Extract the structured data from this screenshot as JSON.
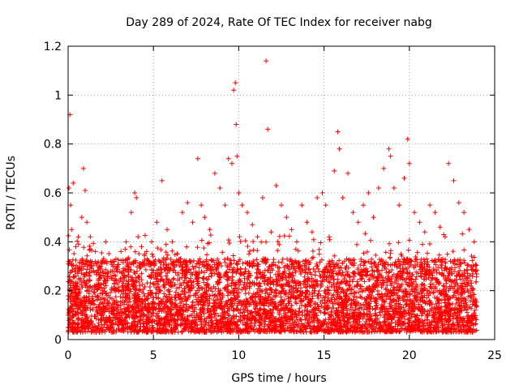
{
  "chart_data": {
    "type": "scatter",
    "title": "Day 289 of 2024, Rate Of TEC Index for receiver nabg",
    "xlabel": "GPS time / hours",
    "ylabel": "ROTI / TECUs",
    "xlim": [
      0,
      25
    ],
    "ylim": [
      0,
      1.2
    ],
    "xticks": [
      "0",
      "5",
      "10",
      "15",
      "20",
      "25"
    ],
    "yticks": [
      "0",
      "0.2",
      "0.4",
      "0.6",
      "0.8",
      "1",
      "1.2"
    ],
    "grid": true,
    "marker": "plus",
    "color": "#ff0000",
    "series": [
      {
        "x": [
          0.05,
          0.1,
          0.15,
          0.2,
          0.3,
          0.45,
          0.6,
          0.8,
          0.9,
          1.0,
          1.1,
          1.3,
          1.6,
          1.9,
          2.2,
          2.5,
          2.8,
          3.1,
          3.4,
          3.7,
          3.9,
          4.0,
          4.1,
          4.3,
          4.6,
          4.9,
          5.2,
          5.5,
          5.8,
          6.1,
          6.4,
          6.7,
          7.0,
          7.3,
          7.6,
          7.8,
          8.0,
          8.3,
          8.6,
          8.9,
          9.2,
          9.4,
          9.6,
          9.7,
          9.8,
          9.85,
          9.9,
          10.0,
          10.2,
          10.5,
          10.8,
          11.1,
          11.4,
          11.6,
          11.7,
          11.9,
          12.2,
          12.5,
          12.8,
          13.1,
          13.4,
          13.7,
          14.0,
          14.3,
          14.6,
          14.9,
          15.1,
          15.3,
          15.6,
          15.8,
          15.9,
          16.1,
          16.4,
          16.7,
          17.0,
          17.3,
          17.6,
          17.9,
          18.2,
          18.5,
          18.8,
          18.9,
          19.1,
          19.4,
          19.7,
          19.9,
          20.0,
          20.3,
          20.6,
          20.9,
          21.2,
          21.5,
          21.8,
          22.1,
          22.3,
          22.6,
          22.9,
          23.2,
          23.5,
          23.8
        ],
        "y": [
          0.62,
          0.92,
          0.55,
          0.45,
          0.64,
          0.38,
          0.42,
          0.5,
          0.7,
          0.61,
          0.48,
          0.42,
          0.36,
          0.3,
          0.4,
          0.28,
          0.33,
          0.36,
          0.4,
          0.52,
          0.6,
          0.58,
          0.42,
          0.38,
          0.36,
          0.4,
          0.48,
          0.65,
          0.45,
          0.4,
          0.35,
          0.52,
          0.56,
          0.48,
          0.74,
          0.55,
          0.5,
          0.45,
          0.68,
          0.62,
          0.55,
          0.74,
          0.72,
          1.02,
          1.05,
          0.88,
          0.75,
          0.6,
          0.55,
          0.52,
          0.47,
          0.42,
          0.58,
          1.14,
          0.86,
          0.44,
          0.63,
          0.55,
          0.5,
          0.45,
          0.4,
          0.55,
          0.48,
          0.44,
          0.58,
          0.6,
          0.55,
          0.42,
          0.69,
          0.85,
          0.78,
          0.58,
          0.68,
          0.52,
          0.48,
          0.55,
          0.6,
          0.5,
          0.62,
          0.7,
          0.78,
          0.75,
          0.62,
          0.55,
          0.66,
          0.82,
          0.72,
          0.52,
          0.48,
          0.44,
          0.55,
          0.52,
          0.46,
          0.42,
          0.72,
          0.65,
          0.56,
          0.52,
          0.45,
          0.4
        ]
      }
    ]
  }
}
